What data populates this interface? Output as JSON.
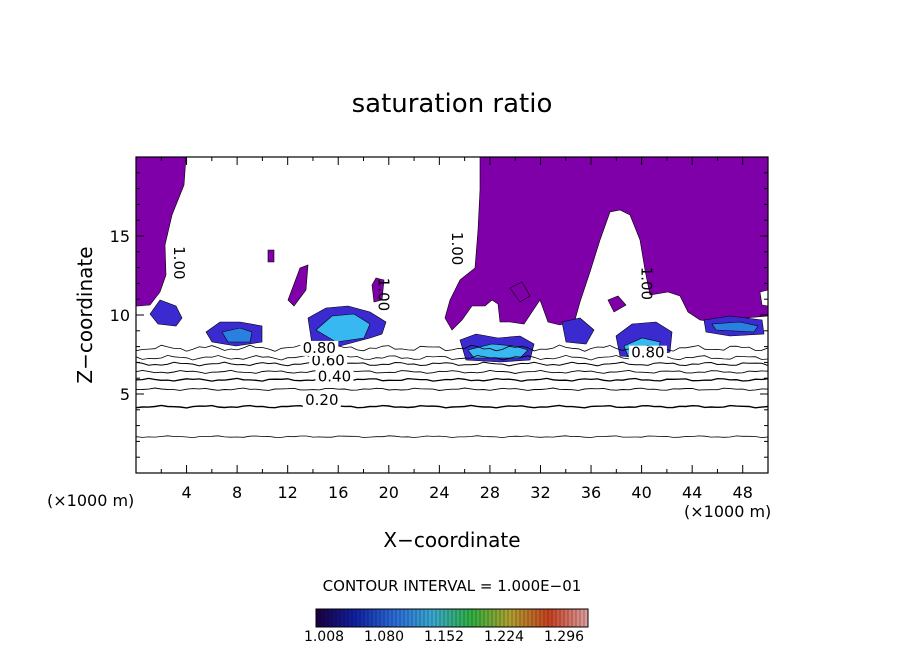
{
  "chart_data": {
    "type": "heatmap",
    "title": "saturation ratio",
    "xlabel": "X−coordinate",
    "ylabel": "Z−coordinate",
    "x_unit_left": "(×1000 m)",
    "x_unit_right": "(×1000 m)",
    "xlim": [
      0,
      50
    ],
    "ylim": [
      0,
      20
    ],
    "x_ticks": [
      4,
      8,
      12,
      16,
      20,
      24,
      28,
      32,
      36,
      40,
      44,
      48
    ],
    "y_ticks": [
      5,
      10,
      15
    ],
    "contour_interval_text": "CONTOUR INTERVAL = 1.000E−01",
    "colorbar": {
      "tick_labels": [
        "1.008",
        "1.080",
        "1.152",
        "1.224",
        "1.296"
      ],
      "colors": [
        "#1a0040",
        "#1020a0",
        "#2a6ad8",
        "#3aa8d0",
        "#30b040",
        "#b0a030",
        "#c84020",
        "#e0a0a0"
      ]
    },
    "saturated_fill_color": "#7f00a8",
    "shading_colors": [
      "#3a2ad0",
      "#2a80e0",
      "#38b8f0"
    ],
    "contour_labels": [
      {
        "text": "0.20",
        "x": 14.7,
        "z": 4.3
      },
      {
        "text": "0.40",
        "x": 15.7,
        "z": 5.8
      },
      {
        "text": "0.60",
        "x": 15.2,
        "z": 6.8
      },
      {
        "text": "0.80",
        "x": 14.5,
        "z": 7.6
      },
      {
        "text": "0.80",
        "x": 40.5,
        "z": 7.3
      },
      {
        "text": "1.00",
        "x": 3.0,
        "z": 13.3
      },
      {
        "text": "1.00",
        "x": 19.2,
        "z": 11.3
      },
      {
        "text": "1.00",
        "x": 25.0,
        "z": 14.2
      },
      {
        "text": "1.00",
        "x": 40.0,
        "z": 12.0
      }
    ]
  }
}
